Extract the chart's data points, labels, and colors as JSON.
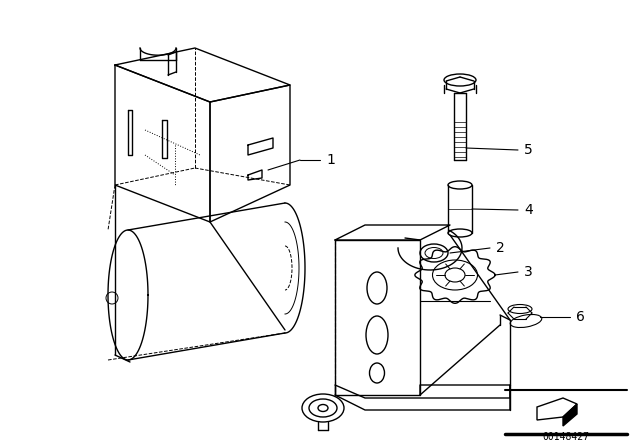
{
  "bg_color": "#ffffff",
  "line_color": "#000000",
  "fig_width": 6.4,
  "fig_height": 4.48,
  "dpi": 100,
  "catalog_number": "00148427",
  "font_size_label": 9
}
